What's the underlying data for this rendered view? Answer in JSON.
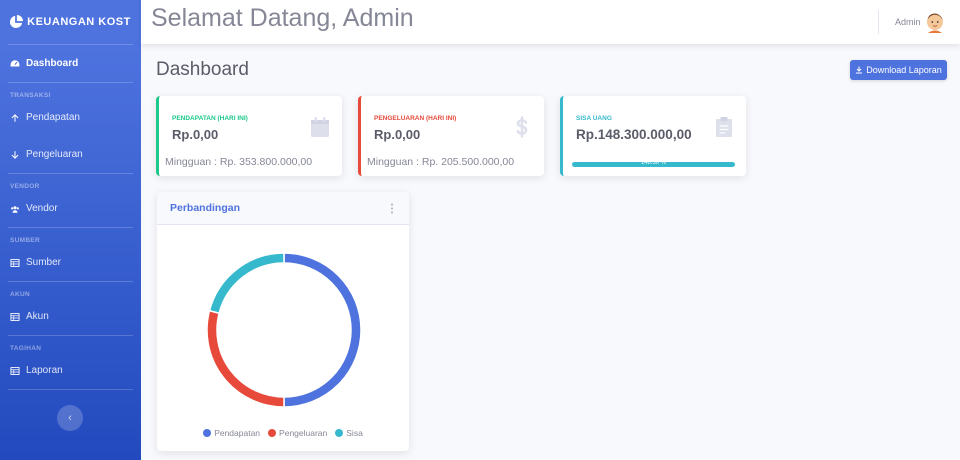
{
  "sidebar": {
    "brand": "KEUANGAN KOST",
    "items": [
      {
        "label": "Dashboard",
        "icon": "tachometer-icon"
      },
      {
        "heading": "TRANSAKSI",
        "label": "Pendapatan",
        "icon": "arrow-up-icon"
      },
      {
        "label": "Pengeluaran",
        "icon": "arrow-down-icon"
      },
      {
        "heading": "VENDOR",
        "label": "Vendor",
        "icon": "users-icon"
      },
      {
        "heading": "SUMBER",
        "label": "Sumber",
        "icon": "table-icon"
      },
      {
        "heading": "AKUN",
        "label": "Akun",
        "icon": "table-icon"
      },
      {
        "heading": "TAGIHAN",
        "label": "Laporan",
        "icon": "table-icon"
      }
    ]
  },
  "topbar": {
    "welcome": "Selamat Datang, Admin",
    "user_name": "Admin"
  },
  "main": {
    "title": "Dashboard",
    "download_label": "Download Laporan",
    "cards": [
      {
        "label": "PENDAPATAN (HARI INI)",
        "value": "Rp.0,00",
        "sub": "Mingguan : Rp. 353.800.000,00",
        "color": "#1cc88a",
        "icon": "calendar-icon"
      },
      {
        "label": "PENGELUARAN (HARI INI)",
        "value": "Rp.0,00",
        "sub": "Mingguan : Rp. 205.500.000,00",
        "color": "#e74a3b",
        "icon": "dollar-icon"
      },
      {
        "label": "SISA UANG",
        "value": "Rp.148.300.000,00",
        "progress_text": "148.30 %",
        "progress": 1.0,
        "color": "#36b9cc",
        "icon": "clipboard-icon"
      }
    ]
  },
  "chart_data": {
    "type": "pie",
    "title": "Perbandingan",
    "categories": [
      "Pendapatan",
      "Pengeluaran",
      "Sisa"
    ],
    "values": [
      353.8,
      205.5,
      148.3
    ],
    "colors": [
      "#4e73df",
      "#e74a3b",
      "#36b9cc"
    ],
    "legend": "bottom"
  }
}
